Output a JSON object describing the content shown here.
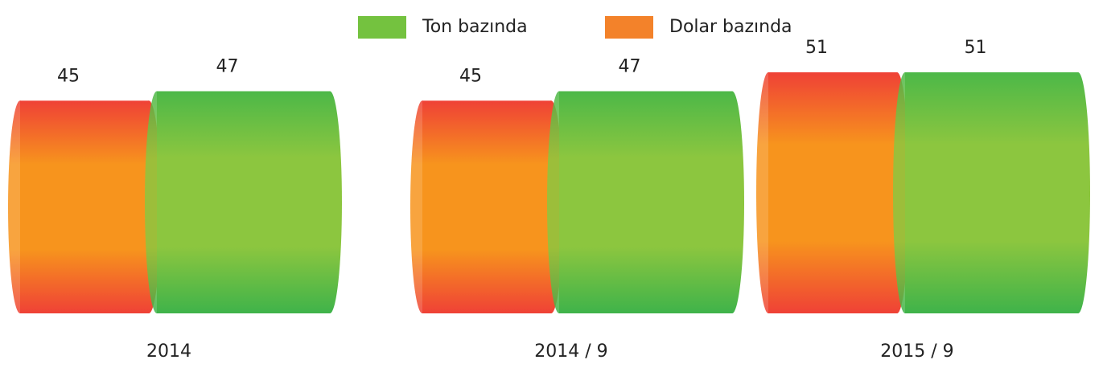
{
  "chart_data": {
    "type": "bar",
    "categories": [
      "2014",
      "2014 / 9",
      "2015 / 9"
    ],
    "series": [
      {
        "name": "Ton bazında",
        "color": "#74c23f",
        "values": [
          47,
          47,
          51
        ]
      },
      {
        "name": "Dolar bazında",
        "color": "#f3822a",
        "values": [
          45,
          45,
          51
        ]
      }
    ],
    "legend": "top"
  }
}
